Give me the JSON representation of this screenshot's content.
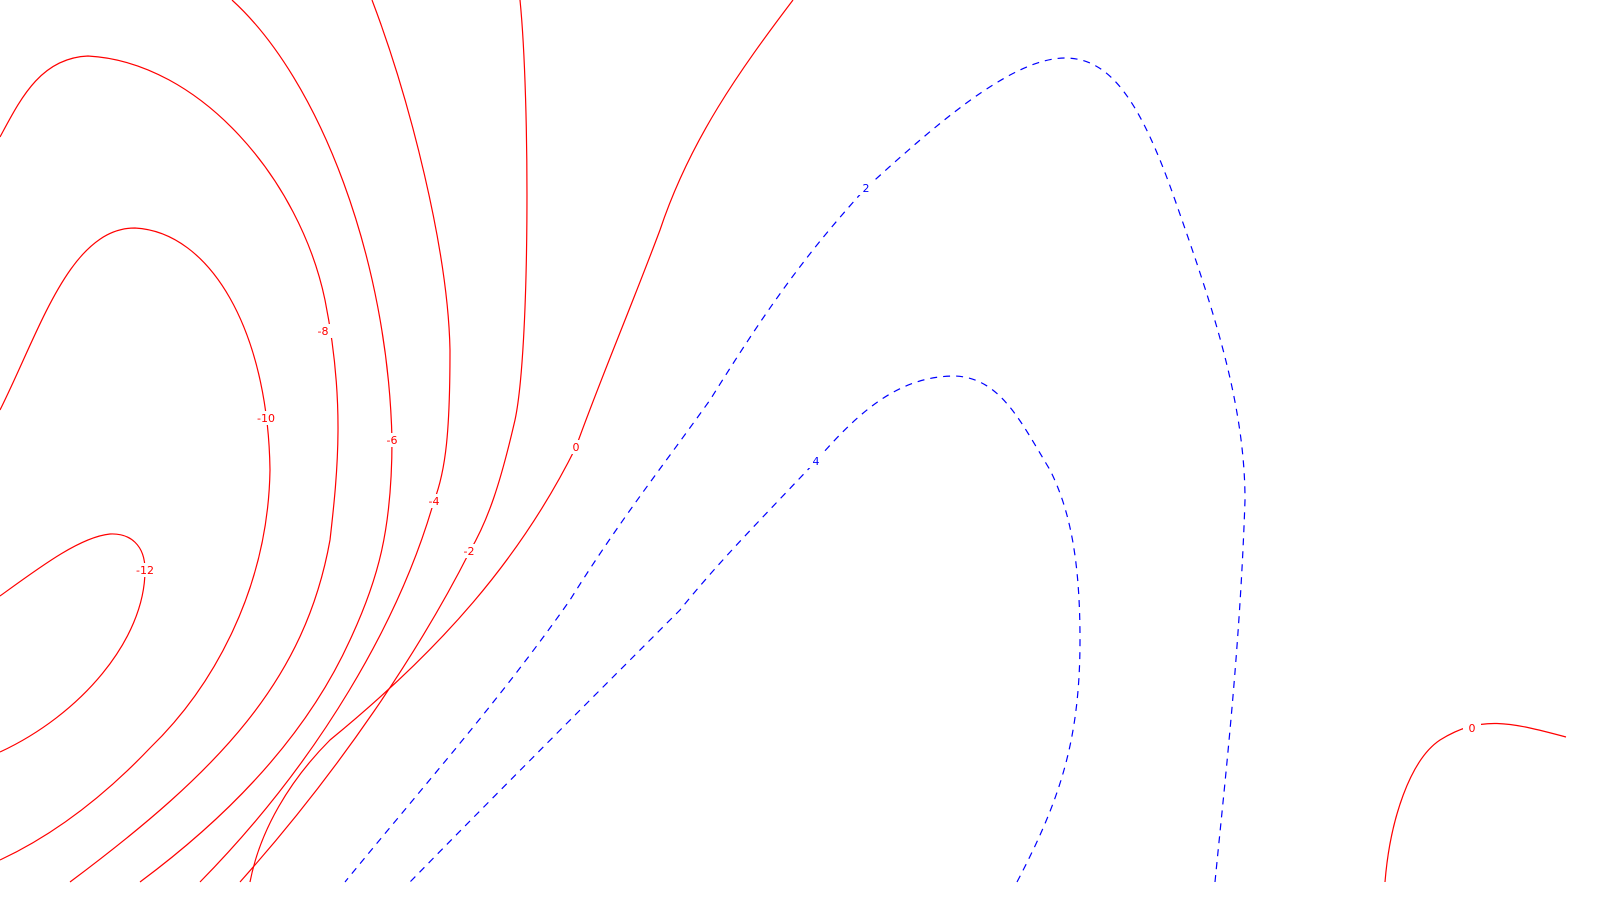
{
  "chart_data": {
    "type": "contour",
    "title": "",
    "xlabel": "",
    "ylabel": "",
    "grid": false,
    "colors": {
      "negative_and_zero": "#ff0000",
      "positive": "#0000ff",
      "background": "#ffffff"
    },
    "line_styles": {
      "negative_and_zero": "solid",
      "positive": "dashed"
    },
    "levels": [
      {
        "id": "neg12",
        "value": -12,
        "label": "-12",
        "sign": "negative"
      },
      {
        "id": "neg10",
        "value": -10,
        "label": "-10",
        "sign": "negative"
      },
      {
        "id": "neg8",
        "value": -8,
        "label": "-8",
        "sign": "negative"
      },
      {
        "id": "neg6",
        "value": -6,
        "label": "-6",
        "sign": "negative"
      },
      {
        "id": "neg4",
        "value": -4,
        "label": "-4",
        "sign": "negative"
      },
      {
        "id": "neg2",
        "value": -2,
        "label": "-2",
        "sign": "negative"
      },
      {
        "id": "zero_a",
        "value": 0,
        "label": "0",
        "sign": "zero"
      },
      {
        "id": "zero_b",
        "value": 0,
        "label": "0",
        "sign": "zero"
      },
      {
        "id": "pos2",
        "value": 2,
        "label": "2",
        "sign": "positive"
      },
      {
        "id": "pos4",
        "value": 4,
        "label": "4",
        "sign": "positive"
      }
    ]
  }
}
